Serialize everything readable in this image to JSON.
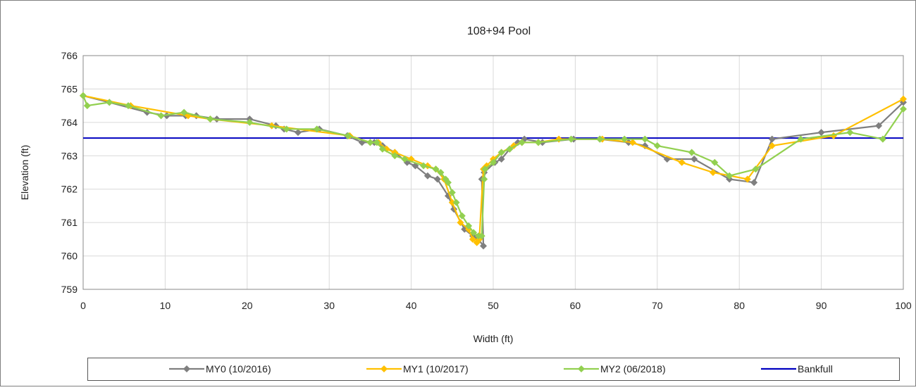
{
  "chart_data": {
    "type": "line",
    "title": "108+94 Pool",
    "xlabel": "Width (ft)",
    "ylabel": "Elevation (ft)",
    "xlim": [
      0,
      100
    ],
    "ylim": [
      759,
      766
    ],
    "xticks": [
      "0",
      "10",
      "20",
      "30",
      "40",
      "50",
      "60",
      "70",
      "80",
      "90",
      "100"
    ],
    "yticks": [
      "759",
      "760",
      "761",
      "762",
      "763",
      "764",
      "765",
      "766"
    ],
    "grid": true,
    "legend_position": "bottom",
    "series": [
      {
        "name": "MY0 (10/2016)",
        "color": "#7f7f7f",
        "marker": "diamond",
        "points": [
          [
            0,
            764.8
          ],
          [
            3.2,
            764.6
          ],
          [
            7.8,
            764.3
          ],
          [
            10.2,
            764.2
          ],
          [
            12.5,
            764.2
          ],
          [
            13.8,
            764.2
          ],
          [
            16.3,
            764.1
          ],
          [
            20.3,
            764.1
          ],
          [
            23.5,
            763.9
          ],
          [
            24.5,
            763.8
          ],
          [
            26.2,
            763.7
          ],
          [
            28.8,
            763.8
          ],
          [
            32.2,
            763.6
          ],
          [
            34.0,
            763.4
          ],
          [
            35.5,
            763.4
          ],
          [
            36.5,
            763.3
          ],
          [
            38.0,
            763.1
          ],
          [
            39.5,
            762.8
          ],
          [
            40.5,
            762.7
          ],
          [
            42.0,
            762.4
          ],
          [
            43.2,
            762.3
          ],
          [
            44.5,
            761.8
          ],
          [
            45.2,
            761.4
          ],
          [
            46.5,
            760.8
          ],
          [
            47.5,
            760.6
          ],
          [
            48.2,
            760.5
          ],
          [
            48.8,
            760.3
          ],
          [
            48.6,
            762.3
          ],
          [
            48.9,
            762.5
          ],
          [
            50.2,
            762.8
          ],
          [
            51.0,
            762.9
          ],
          [
            52.0,
            763.2
          ],
          [
            53.0,
            763.4
          ],
          [
            53.8,
            763.5
          ],
          [
            56.0,
            763.4
          ],
          [
            59.8,
            763.5
          ],
          [
            63.0,
            763.5
          ],
          [
            66.5,
            763.4
          ],
          [
            68.5,
            763.3
          ],
          [
            71.2,
            762.9
          ],
          [
            74.5,
            762.9
          ],
          [
            78.8,
            762.3
          ],
          [
            81.8,
            762.2
          ],
          [
            84.0,
            763.5
          ],
          [
            90.0,
            763.7
          ],
          [
            97.0,
            763.9
          ],
          [
            100,
            764.6
          ]
        ]
      },
      {
        "name": "MY1 (10/2017)",
        "color": "#ffc000",
        "marker": "diamond",
        "points": [
          [
            0,
            764.8
          ],
          [
            5.8,
            764.5
          ],
          [
            12.8,
            764.2
          ],
          [
            15.5,
            764.1
          ],
          [
            23.0,
            763.9
          ],
          [
            32.5,
            763.6
          ],
          [
            35.0,
            763.4
          ],
          [
            36.0,
            763.4
          ],
          [
            37.0,
            763.2
          ],
          [
            38.0,
            763.1
          ],
          [
            40.0,
            762.9
          ],
          [
            42.0,
            762.7
          ],
          [
            43.0,
            762.6
          ],
          [
            44.0,
            762.3
          ],
          [
            45.0,
            761.6
          ],
          [
            46.0,
            761.0
          ],
          [
            47.0,
            760.8
          ],
          [
            47.5,
            760.5
          ],
          [
            48.0,
            760.4
          ],
          [
            48.3,
            760.5
          ],
          [
            48.8,
            762.6
          ],
          [
            49.2,
            762.7
          ],
          [
            50.0,
            762.9
          ],
          [
            51.0,
            763.1
          ],
          [
            52.5,
            763.3
          ],
          [
            53.5,
            763.4
          ],
          [
            55.5,
            763.4
          ],
          [
            58.0,
            763.5
          ],
          [
            63.3,
            763.5
          ],
          [
            67.0,
            763.4
          ],
          [
            73.0,
            762.8
          ],
          [
            76.8,
            762.5
          ],
          [
            81.0,
            762.3
          ],
          [
            84.0,
            763.3
          ],
          [
            91.5,
            763.6
          ],
          [
            100,
            764.7
          ]
        ]
      },
      {
        "name": "MY2 (06/2018)",
        "color": "#92d050",
        "marker": "diamond",
        "points": [
          [
            0,
            764.8
          ],
          [
            0.5,
            764.5
          ],
          [
            3.2,
            764.6
          ],
          [
            5.5,
            764.5
          ],
          [
            9.5,
            764.2
          ],
          [
            12.3,
            764.3
          ],
          [
            15.5,
            764.1
          ],
          [
            20.3,
            764.0
          ],
          [
            24.8,
            763.8
          ],
          [
            28.5,
            763.8
          ],
          [
            32.3,
            763.6
          ],
          [
            35.0,
            763.4
          ],
          [
            35.8,
            763.4
          ],
          [
            36.5,
            763.2
          ],
          [
            38.0,
            763.0
          ],
          [
            39.2,
            762.9
          ],
          [
            41.5,
            762.7
          ],
          [
            43.0,
            762.6
          ],
          [
            43.6,
            762.5
          ],
          [
            44.2,
            762.3
          ],
          [
            44.5,
            762.2
          ],
          [
            45.0,
            761.9
          ],
          [
            45.5,
            761.6
          ],
          [
            46.2,
            761.2
          ],
          [
            47.0,
            760.9
          ],
          [
            47.6,
            760.7
          ],
          [
            48.2,
            760.6
          ],
          [
            48.6,
            760.6
          ],
          [
            48.9,
            762.3
          ],
          [
            49.0,
            762.6
          ],
          [
            50.0,
            762.8
          ],
          [
            51.0,
            763.1
          ],
          [
            52.0,
            763.2
          ],
          [
            53.5,
            763.4
          ],
          [
            55.5,
            763.4
          ],
          [
            59.5,
            763.5
          ],
          [
            63.0,
            763.5
          ],
          [
            66.0,
            763.5
          ],
          [
            68.5,
            763.5
          ],
          [
            70.0,
            763.3
          ],
          [
            74.2,
            763.1
          ],
          [
            77.0,
            762.8
          ],
          [
            78.8,
            762.4
          ],
          [
            82.0,
            762.6
          ],
          [
            87.5,
            763.5
          ],
          [
            93.5,
            763.7
          ],
          [
            97.5,
            763.5
          ],
          [
            100,
            764.4
          ]
        ]
      },
      {
        "name": "Bankfull",
        "color": "#0000c0",
        "marker": "none",
        "points": [
          [
            0,
            763.53
          ],
          [
            100,
            763.53
          ]
        ]
      }
    ]
  }
}
